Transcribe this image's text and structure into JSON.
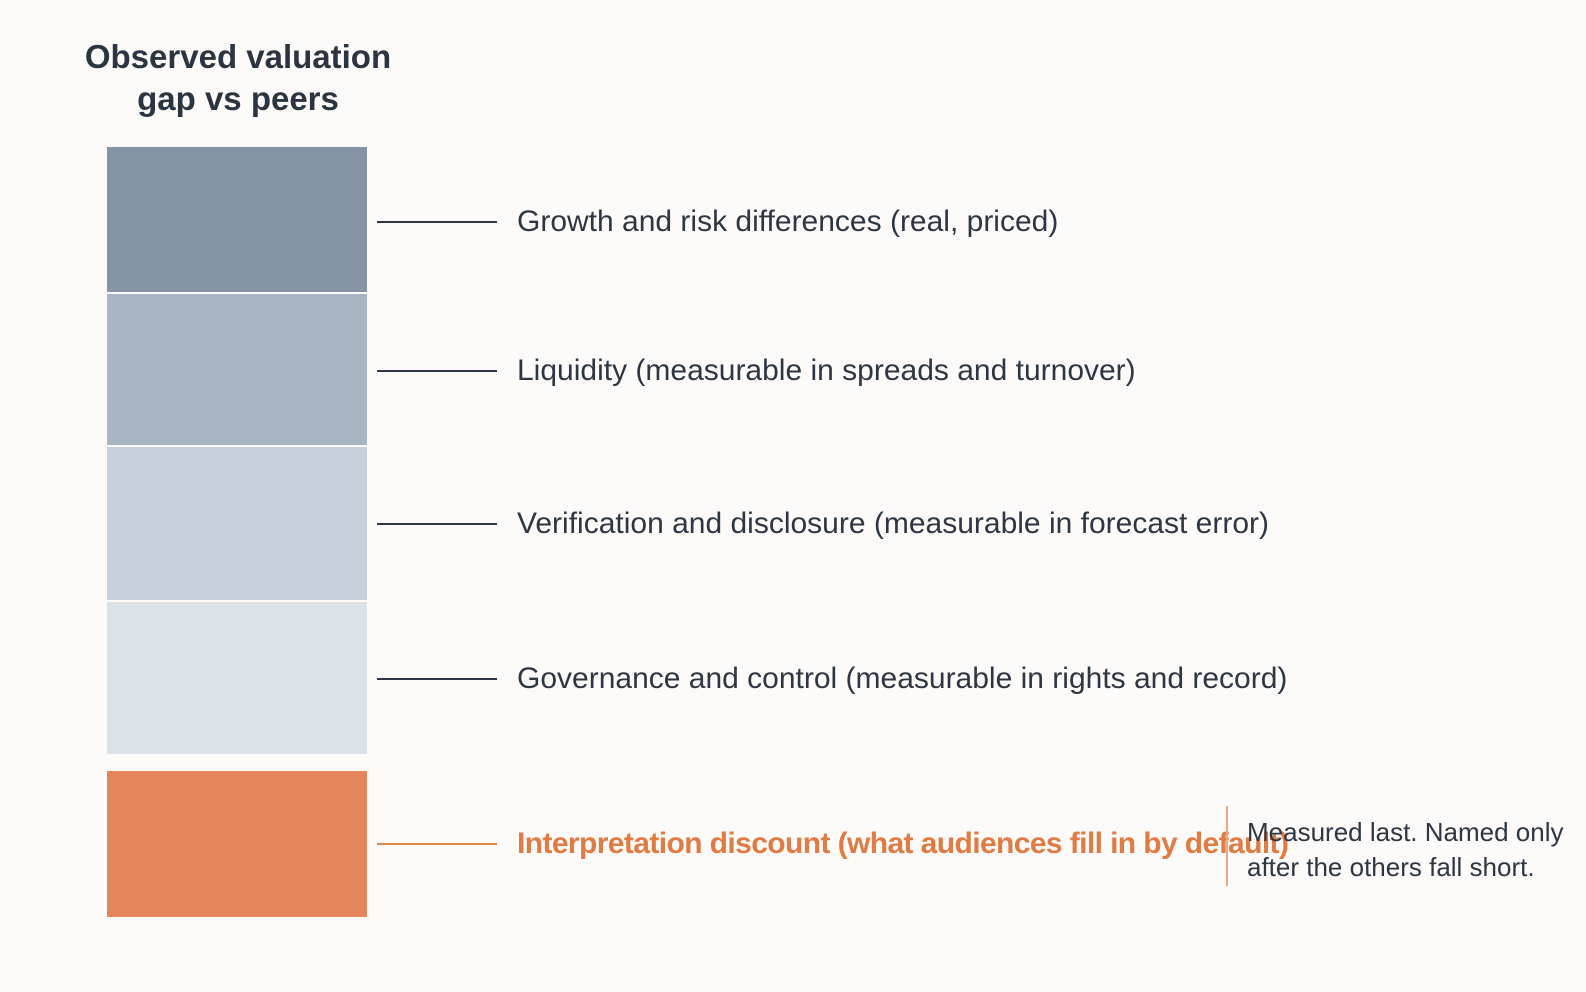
{
  "title": {
    "line1": "Observed valuation",
    "line2": "gap vs peers"
  },
  "colors": {
    "layer1": "#8494a6",
    "layer2": "#a9b5c3",
    "layer3": "#c8d1db",
    "layer4": "#dde2e8",
    "highlight": "#e3875a",
    "highlight_text": "#e07b44"
  },
  "layers": [
    {
      "label": "Growth and risk differences (real, priced)"
    },
    {
      "label": "Liquidity (measurable in spreads and turnover)"
    },
    {
      "label": "Verification and disclosure (measurable in forecast error)"
    },
    {
      "label": "Governance and control (measurable in rights and record)"
    },
    {
      "label": "Interpretation discount (what audiences fill in by default)"
    }
  ],
  "note": {
    "line1": "Measured last. Named only",
    "line2": "after the others fall short."
  }
}
